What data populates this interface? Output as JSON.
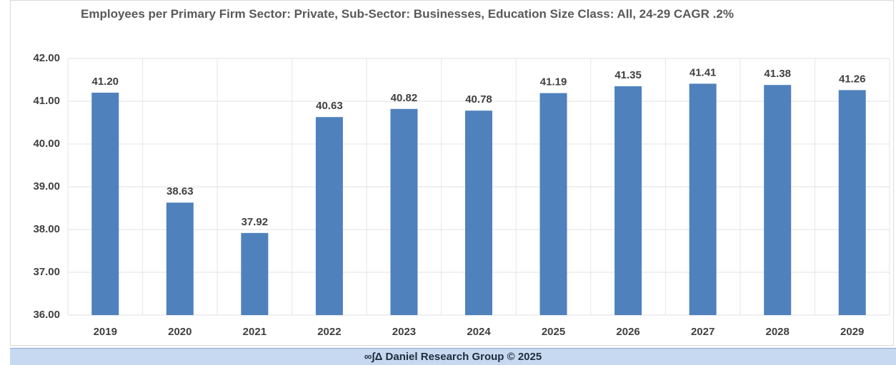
{
  "chart_data": {
    "type": "bar",
    "title": "Employees per Primary Firm Sector: Private, Sub-Sector: Businesses, Education Size Class: All, 24-29 CAGR .2%",
    "categories": [
      "2019",
      "2020",
      "2021",
      "2022",
      "2023",
      "2024",
      "2025",
      "2026",
      "2027",
      "2028",
      "2029"
    ],
    "values": [
      41.2,
      38.63,
      37.92,
      40.63,
      40.82,
      40.78,
      41.19,
      41.35,
      41.41,
      41.38,
      41.26
    ],
    "value_labels": [
      "41.20",
      "38.63",
      "37.92",
      "40.63",
      "40.82",
      "40.78",
      "41.19",
      "41.35",
      "41.41",
      "41.38",
      "41.26"
    ],
    "color": "#4f81bd",
    "ylim": [
      36,
      42
    ],
    "yticks": [
      {
        "value": 36,
        "label": "36.00"
      },
      {
        "value": 37,
        "label": "37.00"
      },
      {
        "value": 38,
        "label": "38.00"
      },
      {
        "value": 39,
        "label": "39.00"
      },
      {
        "value": 40,
        "label": "40.00"
      },
      {
        "value": 41,
        "label": "41.00"
      },
      {
        "value": 42,
        "label": "42.00"
      }
    ],
    "grid": true,
    "footer": "∞∫Δ Daniel Research Group © 2025"
  }
}
